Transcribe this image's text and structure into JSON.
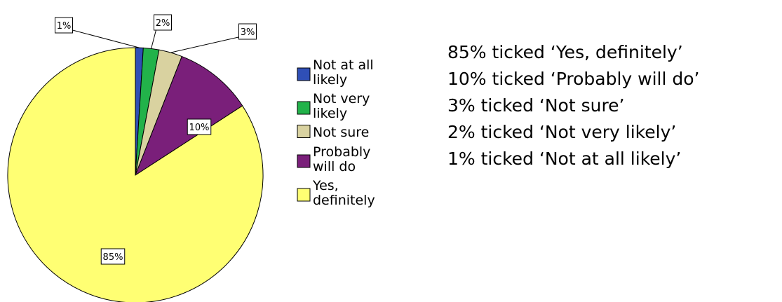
{
  "chart_data": {
    "type": "pie",
    "title": "",
    "categories": [
      "Not at all likely",
      "Not very likely",
      "Not sure",
      "Probably will do",
      "Yes, definitely"
    ],
    "values": [
      1,
      2,
      3,
      10,
      85
    ],
    "data_labels": [
      "1%",
      "2%",
      "3%",
      "10%",
      "85%"
    ],
    "colors": [
      "#2f4fb6",
      "#22b24a",
      "#d9d2a0",
      "#7a1f7a",
      "#ffff73"
    ],
    "legend": {
      "placement": "right",
      "entries": [
        {
          "lines": [
            "Not at all",
            "likely"
          ]
        },
        {
          "lines": [
            "Not very",
            "likely"
          ]
        },
        {
          "lines": [
            "Not sure"
          ]
        },
        {
          "lines": [
            "Probably",
            "will do"
          ]
        },
        {
          "lines": [
            "Yes,",
            "definitely"
          ]
        }
      ]
    }
  },
  "summary": [
    "85% ticked ‘Yes, definitely’",
    "10% ticked ‘Probably will do’",
    "3% ticked ‘Not sure’",
    "2% ticked ‘Not very likely’",
    "1% ticked ‘Not at all likely’"
  ]
}
